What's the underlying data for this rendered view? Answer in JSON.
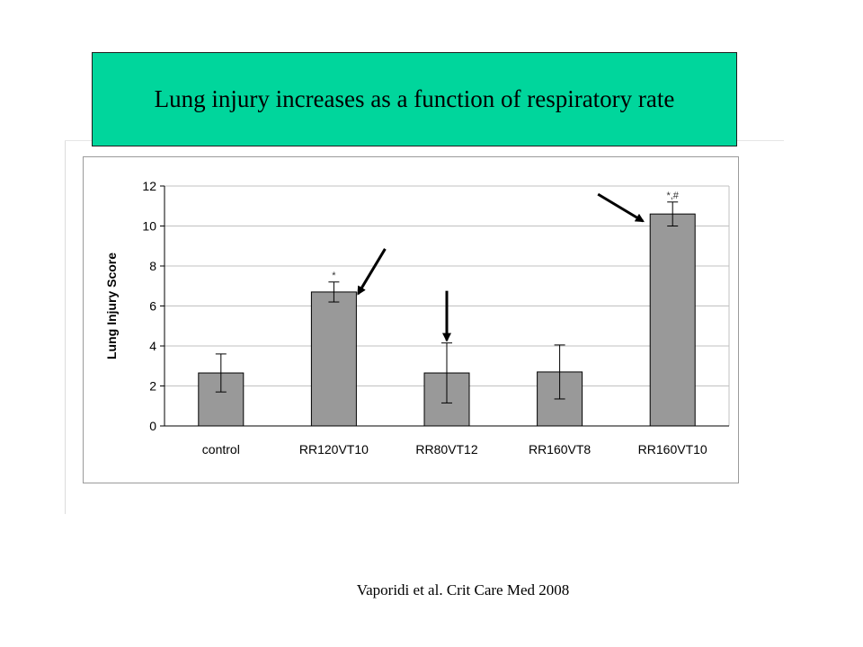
{
  "title": "Lung injury increases as a function of respiratory rate",
  "citation": "Vaporidi et al. Crit Care Med 2008",
  "colors": {
    "title_background": "#00d69c",
    "bar_fill": "#999999",
    "bar_stroke": "#000000",
    "gridline": "#c0c0c0",
    "arrow": "#000000"
  },
  "chart_data": {
    "type": "bar",
    "title": "",
    "xlabel": "",
    "ylabel": "Lung Injury Score",
    "ylim": [
      0,
      12
    ],
    "yticks": [
      0,
      2,
      4,
      6,
      8,
      10,
      12
    ],
    "grid": true,
    "legend": "none",
    "categories": [
      "control",
      "RR120VT10",
      "RR80VT12",
      "RR160VT8",
      "RR160VT10"
    ],
    "series": [
      {
        "values": [
          2.65,
          6.7,
          2.65,
          2.7,
          10.6
        ],
        "error": [
          0.95,
          0.5,
          1.5,
          1.35,
          0.6
        ],
        "annotations": [
          "",
          "*",
          "",
          "",
          "*,#"
        ]
      }
    ],
    "arrows": [
      {
        "target": "RR120VT10",
        "direction": "down-left"
      },
      {
        "target": "RR80VT12",
        "direction": "down"
      },
      {
        "target": "RR160VT10",
        "direction": "down-right"
      }
    ]
  }
}
